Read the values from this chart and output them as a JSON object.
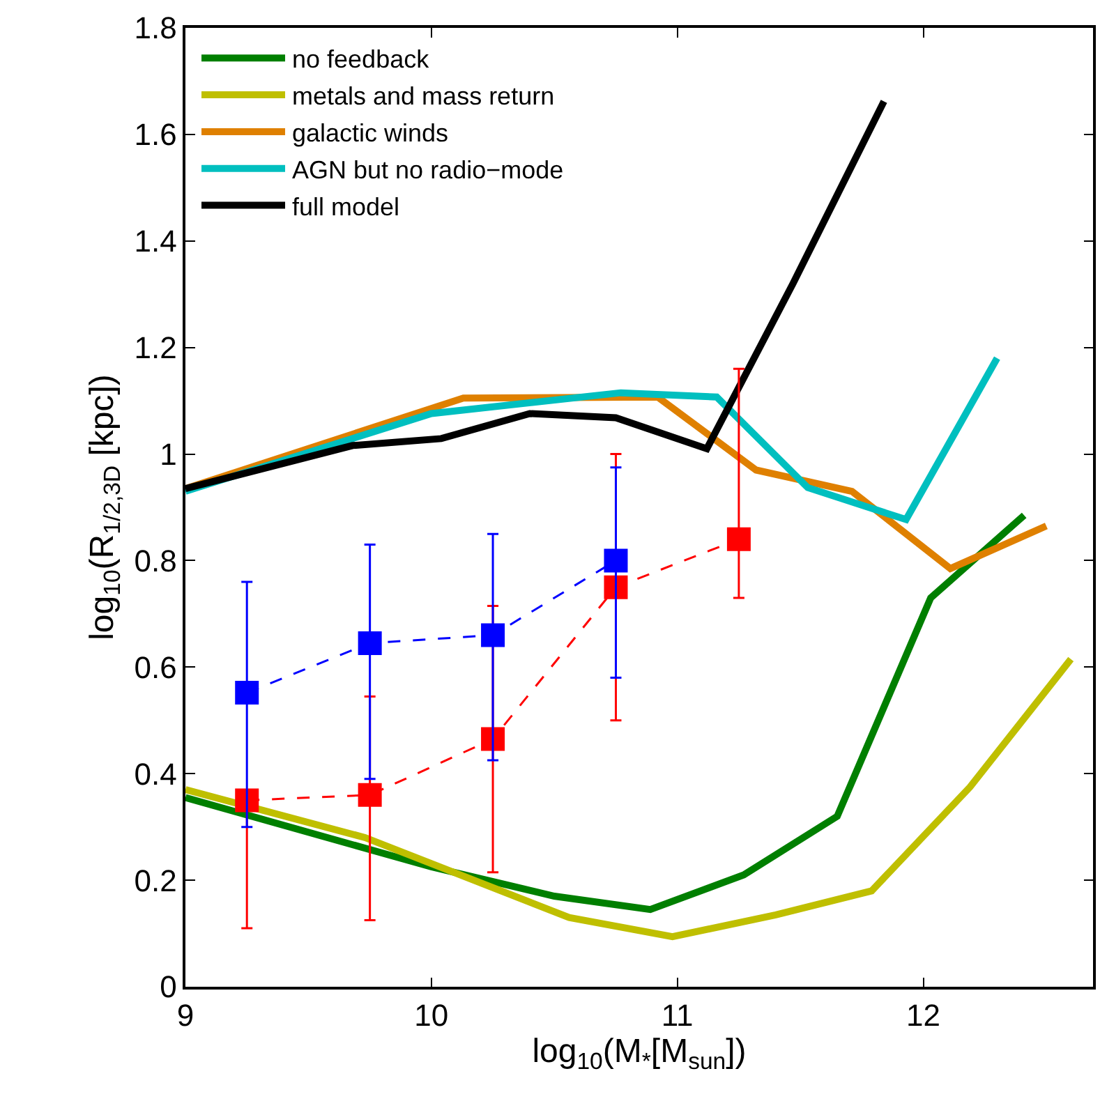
{
  "chart_data": {
    "type": "line",
    "xlabel": "log$_{10}$(M$_{*}$[M$_{sun}$])",
    "ylabel": "log$_{10}$(R$_{1/2,3D}$ [kpc])",
    "xlim": [
      9,
      12.69
    ],
    "xticks": [
      9,
      10,
      11,
      12
    ],
    "ylim": [
      0,
      1.8
    ],
    "yticks": [
      0,
      0.2,
      0.4,
      0.6,
      0.8,
      1,
      1.2,
      1.4,
      1.6,
      1.8
    ],
    "legend": "top left",
    "marker": "none",
    "line_style": "solid",
    "series": [
      {
        "name": "no feedback",
        "color": "#007f00",
        "x": [
          9,
          10,
          10.5,
          10.89,
          11.27,
          11.65,
          12.03,
          12.41
        ],
        "values": [
          0.355,
          0.225,
          0.17,
          0.145,
          0.21,
          0.32,
          0.73,
          0.885
        ]
      },
      {
        "name": "metals and mass return",
        "color": "#bfbf00",
        "x": [
          9,
          9.73,
          10.56,
          10.98,
          11.4,
          11.79,
          12.19,
          12.6
        ],
        "values": [
          0.37,
          0.28,
          0.13,
          0.094,
          0.135,
          0.18,
          0.375,
          0.615
        ]
      },
      {
        "name": "galactic winds",
        "color": "#df8000",
        "x": [
          9,
          10.13,
          10.92,
          11.32,
          11.71,
          12.11,
          12.5
        ],
        "values": [
          0.935,
          1.105,
          1.107,
          0.97,
          0.93,
          0.785,
          0.865
        ]
      },
      {
        "name": "AGN but no radio−mode",
        "color": "#00bfbf",
        "x": [
          9,
          10,
          10.77,
          11.16,
          11.53,
          11.93,
          12.3
        ],
        "values": [
          0.93,
          1.076,
          1.115,
          1.107,
          0.937,
          0.877,
          1.18
        ]
      },
      {
        "name": "full model",
        "color": "#000000",
        "x": [
          9,
          9.68,
          10.04,
          10.4,
          10.75,
          11.12,
          11.47,
          11.84
        ],
        "values": [
          0.935,
          1.016,
          1.029,
          1.076,
          1.068,
          1.01,
          1.32,
          1.662
        ]
      },
      {
        "color": "#ff0000",
        "marker": "square",
        "line_style": "dashed",
        "x": [
          9.25,
          9.75,
          10.25,
          10.75,
          11.25
        ],
        "values": [
          0.35,
          0.36,
          0.465,
          0.75,
          0.84
        ],
        "errors": [
          [
            0.11,
            0.35
          ],
          [
            0.125,
            0.545
          ],
          [
            0.215,
            0.715
          ],
          [
            0.5,
            1.0
          ],
          [
            0.73,
            1.16
          ]
        ]
      },
      {
        "color": "#0000ff",
        "marker": "square",
        "line_style": "dashed",
        "x": [
          9.25,
          9.75,
          10.25,
          10.75
        ],
        "values": [
          0.552,
          0.645,
          0.66,
          0.8
        ],
        "errors": [
          [
            0.3,
            0.76
          ],
          [
            0.39,
            0.83
          ],
          [
            0.425,
            0.85
          ],
          [
            0.58,
            0.975
          ]
        ]
      }
    ]
  }
}
